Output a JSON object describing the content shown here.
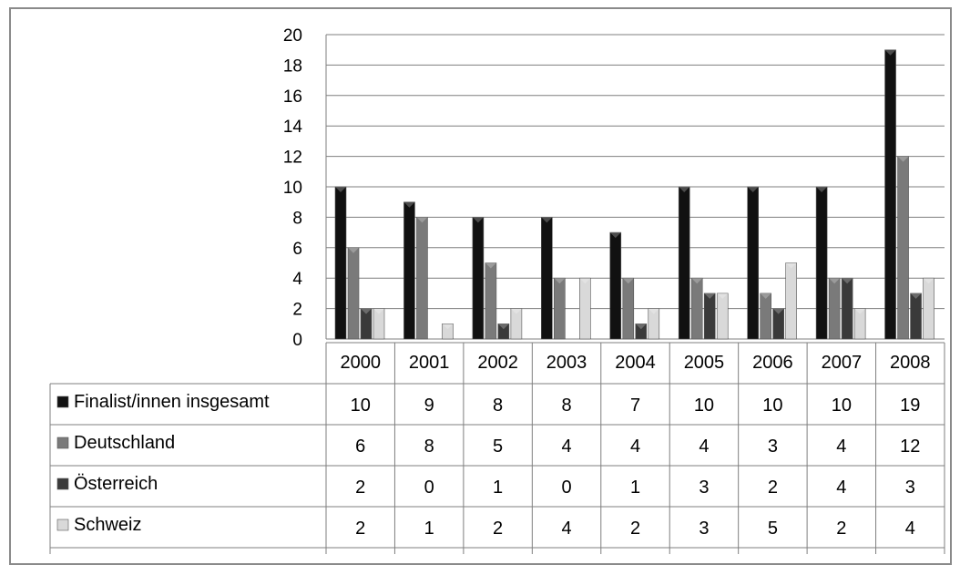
{
  "chart_data": {
    "type": "bar",
    "categories": [
      "2000",
      "2001",
      "2002",
      "2003",
      "2004",
      "2005",
      "2006",
      "2007",
      "2008"
    ],
    "series": [
      {
        "name": "Finalist/innen insgesamt",
        "values": [
          10,
          9,
          8,
          8,
          7,
          10,
          10,
          10,
          19
        ],
        "color": "#111111"
      },
      {
        "name": "Deutschland",
        "values": [
          6,
          8,
          5,
          4,
          4,
          4,
          3,
          4,
          12
        ],
        "color": "#7a7a7a"
      },
      {
        "name": "Österreich",
        "values": [
          2,
          0,
          1,
          0,
          1,
          3,
          2,
          4,
          3
        ],
        "color": "#3a3a3a"
      },
      {
        "name": "Schweiz",
        "values": [
          2,
          1,
          2,
          4,
          2,
          3,
          5,
          2,
          4
        ],
        "color": "#d9d9d9"
      }
    ],
    "ylim": [
      0,
      20
    ],
    "yticks": [
      "0",
      "2",
      "4",
      "6",
      "8",
      "10",
      "12",
      "14",
      "16",
      "18",
      "20"
    ],
    "grid": true,
    "legend": "data table below chart"
  }
}
